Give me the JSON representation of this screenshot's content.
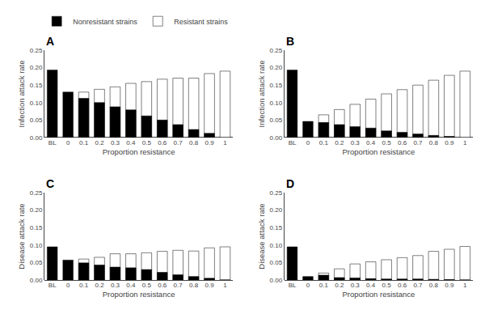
{
  "chart_data": [
    {
      "type": "bar",
      "title": "A",
      "xlabel": "Proportion resistance",
      "ylabel": "Infection attack rate",
      "categories": [
        "BL",
        "0",
        "0.1",
        "0.2",
        "0.3",
        "0.4",
        "0.5",
        "0.6",
        "0.7",
        "0.8",
        "0.9",
        "1"
      ],
      "series": [
        {
          "name": "Resistant strains",
          "color": "#ffffff",
          "values": [
            0.0,
            0.0,
            0.13,
            0.138,
            0.145,
            0.155,
            0.16,
            0.167,
            0.17,
            0.17,
            0.183,
            0.19
          ]
        },
        {
          "name": "Nonresistant strains",
          "color": "#000000",
          "values": [
            0.193,
            0.13,
            0.112,
            0.1,
            0.088,
            0.079,
            0.062,
            0.05,
            0.037,
            0.023,
            0.012,
            0.0
          ]
        }
      ],
      "ylim": [
        0,
        0.25
      ],
      "yticks": [
        {
          "value": 0,
          "label": "0.00"
        },
        0.05,
        {
          "value": 0.1,
          "label": "0.10"
        },
        0.15,
        {
          "value": 0.2,
          "label": "0.20"
        },
        0.25
      ],
      "grid": false,
      "stacked": false,
      "legend": "upper right"
    },
    {
      "type": "bar",
      "title": "B",
      "xlabel": "Proportion resistance",
      "ylabel": "Infection attack rate",
      "categories": [
        "BL",
        "0",
        "0.1",
        "0.2",
        "0.3",
        "0.4",
        "0.5",
        "0.6",
        "0.7",
        "0.8",
        "0.9",
        "1"
      ],
      "series": [
        {
          "name": "Resistant strains",
          "color": "#ffffff",
          "values": [
            0.0,
            0.0,
            0.065,
            0.08,
            0.095,
            0.11,
            0.125,
            0.137,
            0.15,
            0.164,
            0.178,
            0.19
          ]
        },
        {
          "name": "Nonresistant strains",
          "color": "#000000",
          "values": [
            0.193,
            0.046,
            0.043,
            0.037,
            0.031,
            0.027,
            0.019,
            0.015,
            0.01,
            0.006,
            0.003,
            0.0
          ]
        }
      ],
      "ylim": [
        0,
        0.25
      ],
      "yticks": [
        {
          "value": 0,
          "label": "0.00"
        },
        0.05,
        {
          "value": 0.1,
          "label": "0.10"
        },
        0.15,
        {
          "value": 0.2,
          "label": "0.20"
        },
        0.25
      ],
      "grid": false,
      "stacked": false
    },
    {
      "type": "bar",
      "title": "C",
      "xlabel": "Proportion resistance",
      "ylabel": "Disease attack rate",
      "categories": [
        "BL",
        "0",
        "0.1",
        "0.2",
        "0.3",
        "0.4",
        "0.5",
        "0.6",
        "0.7",
        "0.8",
        "0.9",
        "1"
      ],
      "series": [
        {
          "name": "Resistant strains",
          "color": "#ffffff",
          "values": [
            0.0,
            0.0,
            0.06,
            0.065,
            0.075,
            0.075,
            0.078,
            0.082,
            0.085,
            0.083,
            0.092,
            0.095
          ]
        },
        {
          "name": "Nonresistant strains",
          "color": "#000000",
          "values": [
            0.095,
            0.057,
            0.049,
            0.043,
            0.037,
            0.035,
            0.03,
            0.022,
            0.015,
            0.01,
            0.005,
            0.0
          ]
        }
      ],
      "ylim": [
        0,
        0.25
      ],
      "yticks": [
        {
          "value": 0,
          "label": "0.00"
        },
        0.05,
        {
          "value": 0.1,
          "label": "0.10"
        },
        0.15,
        {
          "value": 0.2,
          "label": "0.20"
        },
        0.25
      ],
      "grid": false,
      "stacked": false
    },
    {
      "type": "bar",
      "title": "D",
      "xlabel": "Proportion resistance",
      "ylabel": "Disease attack rate",
      "categories": [
        "BL",
        "0",
        "0.1",
        "0.2",
        "0.3",
        "0.4",
        "0.5",
        "0.6",
        "0.7",
        "0.8",
        "0.9",
        "1"
      ],
      "series": [
        {
          "name": "Resistant strains",
          "color": "#ffffff",
          "values": [
            0.0,
            0.0,
            0.02,
            0.032,
            0.046,
            0.052,
            0.058,
            0.064,
            0.07,
            0.082,
            0.088,
            0.096
          ]
        },
        {
          "name": "Nonresistant strains",
          "color": "#000000",
          "values": [
            0.095,
            0.01,
            0.014,
            0.007,
            0.006,
            0.004,
            0.003,
            0.003,
            0.003,
            0.002,
            0.001,
            0.0
          ]
        }
      ],
      "ylim": [
        0,
        0.25
      ],
      "yticks": [
        {
          "value": 0,
          "label": "0.00"
        },
        0.05,
        {
          "value": 0.1,
          "label": "0.10"
        },
        0.15,
        {
          "value": 0.2,
          "label": "0.20"
        },
        0.25
      ],
      "grid": false,
      "stacked": false
    }
  ]
}
